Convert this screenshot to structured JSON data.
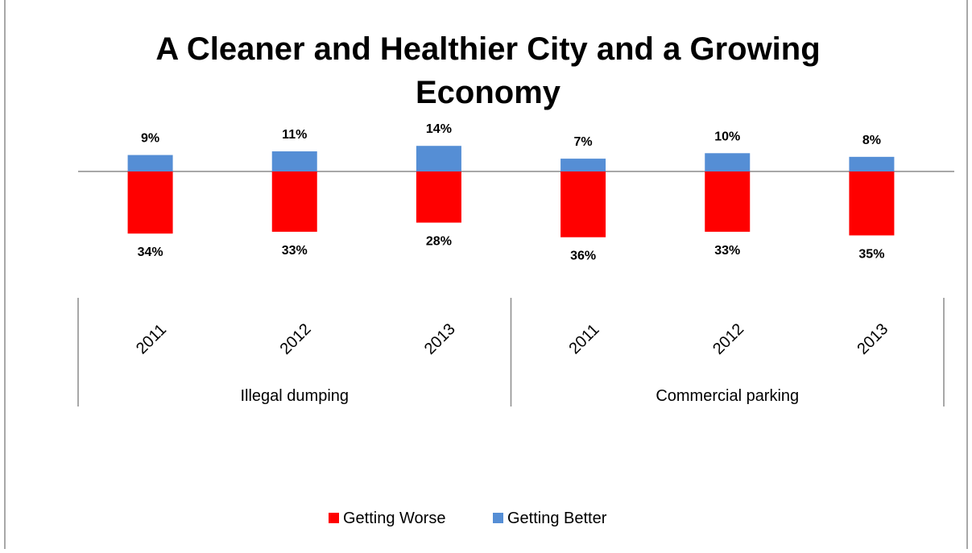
{
  "chart_data": {
    "type": "bar",
    "title": "A Cleaner and Healthier City and a Growing Economy",
    "title_lines": [
      "A Cleaner and Healthier City and a Growing",
      "Economy"
    ],
    "xlabel": "",
    "ylabel": "",
    "groups": [
      {
        "name": "Illegal dumping",
        "categories": [
          "2011",
          "2012",
          "2013"
        ]
      },
      {
        "name": "Commercial parking",
        "categories": [
          "2011",
          "2012",
          "2013"
        ]
      }
    ],
    "categories": [
      "2011",
      "2012",
      "2013",
      "2011",
      "2012",
      "2013"
    ],
    "series": [
      {
        "name": "Getting Worse",
        "values": [
          -34,
          -33,
          -28,
          -36,
          -33,
          -35
        ],
        "color": "#ff0000"
      },
      {
        "name": "Getting Better",
        "values": [
          9,
          11,
          14,
          7,
          10,
          8
        ],
        "color": "#558ed5"
      }
    ],
    "data_labels": {
      "Getting Worse": [
        "34%",
        "33%",
        "28%",
        "36%",
        "33%",
        "35%"
      ],
      "Getting Better": [
        "9%",
        "11%",
        "14%",
        "7%",
        "10%",
        "8%"
      ]
    },
    "unit": "%",
    "stacked": true,
    "grid": false,
    "legend_position": "bottom"
  }
}
